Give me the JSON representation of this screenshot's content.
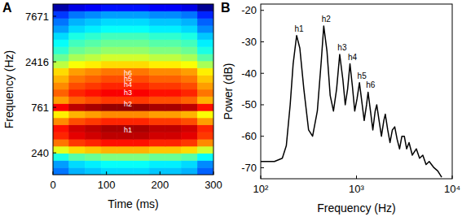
{
  "chart_data": [
    {
      "type": "heatmap",
      "panel": "A",
      "xlabel": "Time (ms)",
      "ylabel": "Frequency (Hz)",
      "xlim": [
        0,
        300
      ],
      "xticks": [
        0,
        100,
        200,
        300
      ],
      "ylim": [
        138,
        10450
      ],
      "yticks": [
        240,
        761,
        2416,
        7671
      ],
      "log": "y",
      "time_edges": [
        0,
        30,
        60,
        90,
        120,
        150,
        180,
        210,
        240,
        270,
        300
      ],
      "freq_edges": [
        138,
        165,
        198,
        237,
        284,
        340,
        407,
        488,
        584,
        699,
        837,
        1003,
        1201,
        1438,
        1722,
        2063,
        2470,
        2958,
        3543,
        4243,
        5081,
        6085,
        7288,
        8728,
        10450
      ],
      "color_range": [
        -70,
        -20
      ],
      "cells": [
        [
          -58,
          -55,
          -54,
          -53,
          -53,
          -53,
          -54,
          -54,
          -55,
          -59
        ],
        [
          -56,
          -53,
          -52,
          -51,
          -51,
          -51,
          -52,
          -52,
          -53,
          -57
        ],
        [
          -50,
          -47,
          -46,
          -45,
          -45,
          -45,
          -46,
          -46,
          -47,
          -51
        ],
        [
          -40,
          -37,
          -36,
          -35,
          -35,
          -35,
          -36,
          -36,
          -37,
          -41
        ],
        [
          -32,
          -29,
          -28,
          -27,
          -27,
          -27,
          -28,
          -28,
          -29,
          -33
        ],
        [
          -28,
          -25,
          -24,
          -23,
          -23,
          -23,
          -24,
          -24,
          -25,
          -29
        ],
        [
          -27,
          -24,
          -23,
          -22,
          -22,
          -22,
          -23,
          -23,
          -24,
          -28
        ],
        [
          -33,
          -30,
          -29,
          -28,
          -28,
          -28,
          -29,
          -29,
          -30,
          -34
        ],
        [
          -38,
          -35,
          -34,
          -33,
          -33,
          -33,
          -34,
          -34,
          -35,
          -39
        ],
        [
          -26,
          -23,
          -22,
          -21,
          -21,
          -21,
          -22,
          -22,
          -23,
          -27
        ],
        [
          -34,
          -31,
          -30,
          -29,
          -29,
          -29,
          -30,
          -30,
          -31,
          -35
        ],
        [
          -31,
          -28,
          -27,
          -26,
          -26,
          -26,
          -27,
          -27,
          -28,
          -32
        ],
        [
          -33,
          -30,
          -29,
          -28,
          -28,
          -28,
          -29,
          -29,
          -30,
          -34
        ],
        [
          -35,
          -32,
          -31,
          -30,
          -30,
          -30,
          -31,
          -31,
          -32,
          -36
        ],
        [
          -37,
          -34,
          -33,
          -32,
          -32,
          -32,
          -33,
          -33,
          -34,
          -38
        ],
        [
          -42,
          -39,
          -38,
          -37,
          -37,
          -37,
          -38,
          -38,
          -39,
          -43
        ],
        [
          -46,
          -43,
          -42,
          -41,
          -41,
          -41,
          -42,
          -42,
          -43,
          -47
        ],
        [
          -49,
          -46,
          -45,
          -44,
          -44,
          -44,
          -45,
          -45,
          -46,
          -50
        ],
        [
          -51,
          -48,
          -47,
          -46,
          -46,
          -46,
          -47,
          -47,
          -48,
          -52
        ],
        [
          -53,
          -50,
          -49,
          -48,
          -48,
          -48,
          -49,
          -49,
          -50,
          -54
        ],
        [
          -56,
          -53,
          -52,
          -51,
          -51,
          -51,
          -52,
          -52,
          -53,
          -57
        ],
        [
          -58,
          -55,
          -54,
          -53,
          -53,
          -53,
          -54,
          -54,
          -55,
          -59
        ],
        [
          -61,
          -58,
          -57,
          -56,
          -56,
          -56,
          -57,
          -57,
          -58,
          -62
        ],
        [
          -68,
          -65,
          -64,
          -63,
          -63,
          -63,
          -64,
          -64,
          -65,
          -69
        ]
      ],
      "annotations": [
        {
          "text": "h1",
          "x": 140,
          "y": 427
        },
        {
          "text": "h2",
          "x": 140,
          "y": 824
        },
        {
          "text": "h3",
          "x": 140,
          "y": 1100
        },
        {
          "text": "h4",
          "x": 140,
          "y": 1350
        },
        {
          "text": "h5",
          "x": 140,
          "y": 1560
        },
        {
          "text": "h6",
          "x": 140,
          "y": 1800
        }
      ]
    },
    {
      "type": "line",
      "panel": "B",
      "xlabel": "Frequency (Hz)",
      "ylabel": "Power (dB)",
      "log": "x",
      "color": "#000000",
      "xlim": [
        100,
        10000
      ],
      "xticks": [
        {
          "value": 100,
          "label": "10²"
        },
        {
          "value": 1000,
          "label": "10³"
        },
        {
          "value": 10000,
          "label": "10⁴"
        }
      ],
      "ylim": [
        -73.5,
        -18
      ],
      "yticks": [
        -70,
        -60,
        -50,
        -40,
        -30,
        -20
      ],
      "x": [
        100,
        139,
        168,
        185,
        203,
        218,
        237,
        256,
        282,
        316,
        348,
        390,
        429,
        455,
        492,
        531,
        575,
        620,
        668,
        721,
        763,
        808,
        855,
        906,
        959,
        1015,
        1074,
        1137,
        1204,
        1274,
        1322,
        1400,
        1482,
        1568,
        1628,
        1722,
        1823,
        1930,
        2000,
        2120,
        2240,
        2370,
        2510,
        2660,
        2820,
        2980,
        3160,
        3340,
        3540,
        3830,
        4220,
        4560,
        4930,
        5330,
        5750,
        6450,
        7060,
        7760
      ],
      "values": [
        -68,
        -68,
        -67,
        -63,
        -50,
        -37,
        -28,
        -32,
        -45,
        -58,
        -60,
        -52,
        -36,
        -25,
        -33,
        -47,
        -52,
        -45,
        -34,
        -42,
        -50,
        -45,
        -37,
        -44,
        -52,
        -48,
        -43,
        -49,
        -55,
        -50,
        -46,
        -52,
        -58,
        -52,
        -50,
        -55,
        -60,
        -55,
        -53,
        -58,
        -62,
        -58,
        -57,
        -61,
        -64,
        -60,
        -60,
        -64,
        -62,
        -66,
        -64,
        -67,
        -66,
        -69,
        -68,
        -70,
        -71,
        -73
      ],
      "annotations": [
        {
          "text": "h1",
          "x": 237,
          "y": -28
        },
        {
          "text": "h2",
          "x": 455,
          "y": -25
        },
        {
          "text": "h3",
          "x": 668,
          "y": -34
        },
        {
          "text": "h4",
          "x": 855,
          "y": -37
        },
        {
          "text": "h5",
          "x": 1074,
          "y": -43
        },
        {
          "text": "h6",
          "x": 1322,
          "y": -46
        }
      ]
    }
  ]
}
